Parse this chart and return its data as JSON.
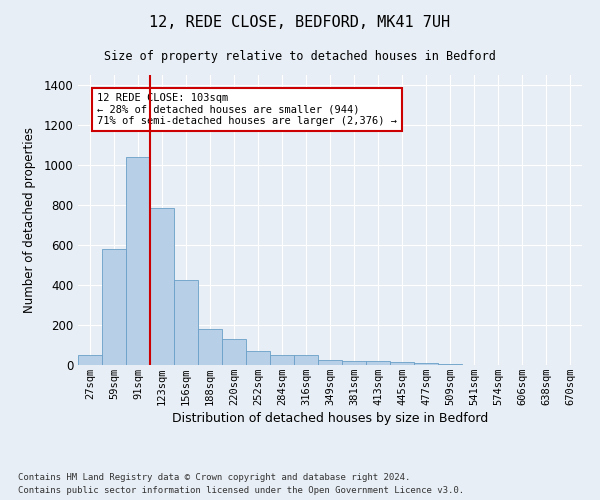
{
  "title_line1": "12, REDE CLOSE, BEDFORD, MK41 7UH",
  "title_line2": "Size of property relative to detached houses in Bedford",
  "xlabel": "Distribution of detached houses by size in Bedford",
  "ylabel": "Number of detached properties",
  "categories": [
    "27sqm",
    "59sqm",
    "91sqm",
    "123sqm",
    "156sqm",
    "188sqm",
    "220sqm",
    "252sqm",
    "284sqm",
    "316sqm",
    "349sqm",
    "381sqm",
    "413sqm",
    "445sqm",
    "477sqm",
    "509sqm",
    "541sqm",
    "574sqm",
    "606sqm",
    "638sqm",
    "670sqm"
  ],
  "values": [
    50,
    578,
    1040,
    783,
    425,
    180,
    128,
    70,
    52,
    50,
    25,
    22,
    20,
    13,
    8,
    3,
    2,
    1,
    0,
    0,
    0
  ],
  "bar_color": "#b8cfe8",
  "bar_edge_color": "#6a9fc8",
  "vline_color": "#cc0000",
  "annotation_text": "12 REDE CLOSE: 103sqm\n← 28% of detached houses are smaller (944)\n71% of semi-detached houses are larger (2,376) →",
  "annotation_box_edgecolor": "#cc0000",
  "annotation_box_facecolor": "#ffffff",
  "ylim": [
    0,
    1450
  ],
  "yticks": [
    0,
    200,
    400,
    600,
    800,
    1000,
    1200,
    1400
  ],
  "footer_line1": "Contains HM Land Registry data © Crown copyright and database right 2024.",
  "footer_line2": "Contains public sector information licensed under the Open Government Licence v3.0.",
  "bg_color": "#e8eef5",
  "plot_bg_color": "#e8eef5",
  "grid_color": "#ffffff"
}
